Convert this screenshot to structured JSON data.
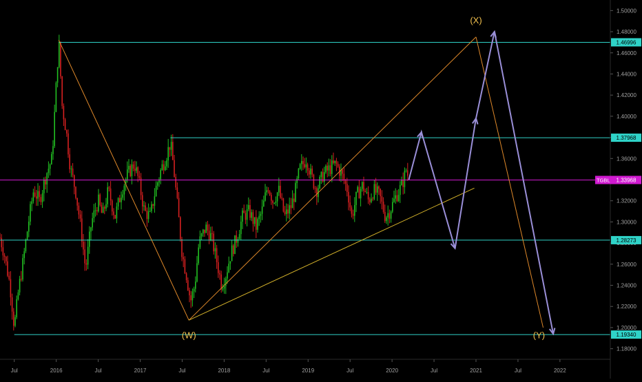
{
  "chart_data": {
    "type": "line",
    "chart_kind": "candlestick price chart with Elliott-wave annotation",
    "y_axis": {
      "position": "right",
      "ylim": [
        1.17,
        1.51
      ],
      "ticks": [
        "1.18000",
        "1.20000",
        "1.22000",
        "1.24000",
        "1.26000",
        "1.28000",
        "1.30000",
        "1.32000",
        "1.34000",
        "1.36000",
        "1.38000",
        "1.40000",
        "1.42000",
        "1.44000",
        "1.46000",
        "1.48000",
        "1.50000"
      ],
      "tick_values": [
        1.18,
        1.2,
        1.22,
        1.24,
        1.26,
        1.28,
        1.3,
        1.32,
        1.34,
        1.36,
        1.38,
        1.4,
        1.42,
        1.44,
        1.46,
        1.48,
        1.5
      ]
    },
    "x_axis": {
      "range": [
        2015.33,
        2022.6
      ],
      "tick_labels": [
        {
          "t": 2015.5,
          "label": "Jul"
        },
        {
          "t": 2016.0,
          "label": "2016"
        },
        {
          "t": 2016.5,
          "label": "Jul"
        },
        {
          "t": 2017.0,
          "label": "2017"
        },
        {
          "t": 2017.5,
          "label": "Jul"
        },
        {
          "t": 2018.0,
          "label": "2018"
        },
        {
          "t": 2018.5,
          "label": "Jul"
        },
        {
          "t": 2019.0,
          "label": "2019"
        },
        {
          "t": 2019.5,
          "label": "Jul"
        },
        {
          "t": 2020.0,
          "label": "2020"
        },
        {
          "t": 2020.5,
          "label": "Jul"
        },
        {
          "t": 2021.0,
          "label": "2021"
        },
        {
          "t": 2021.5,
          "label": "Jul"
        },
        {
          "t": 2022.0,
          "label": "2022"
        }
      ]
    },
    "price_path": [
      [
        2015.33,
        1.285
      ],
      [
        2015.38,
        1.27
      ],
      [
        2015.45,
        1.24
      ],
      [
        2015.5,
        1.2
      ],
      [
        2015.55,
        1.235
      ],
      [
        2015.6,
        1.26
      ],
      [
        2015.67,
        1.3
      ],
      [
        2015.73,
        1.33
      ],
      [
        2015.8,
        1.32
      ],
      [
        2015.88,
        1.345
      ],
      [
        2015.95,
        1.36
      ],
      [
        2016.03,
        1.472
      ],
      [
        2016.07,
        1.41
      ],
      [
        2016.12,
        1.385
      ],
      [
        2016.17,
        1.35
      ],
      [
        2016.23,
        1.33
      ],
      [
        2016.3,
        1.29
      ],
      [
        2016.35,
        1.255
      ],
      [
        2016.42,
        1.3
      ],
      [
        2016.5,
        1.32
      ],
      [
        2016.55,
        1.305
      ],
      [
        2016.62,
        1.33
      ],
      [
        2016.7,
        1.305
      ],
      [
        2016.78,
        1.33
      ],
      [
        2016.85,
        1.345
      ],
      [
        2016.93,
        1.355
      ],
      [
        2016.98,
        1.34
      ],
      [
        2017.05,
        1.31
      ],
      [
        2017.12,
        1.305
      ],
      [
        2017.18,
        1.33
      ],
      [
        2017.25,
        1.35
      ],
      [
        2017.3,
        1.36
      ],
      [
        2017.36,
        1.375
      ],
      [
        2017.4,
        1.35
      ],
      [
        2017.45,
        1.31
      ],
      [
        2017.5,
        1.27
      ],
      [
        2017.55,
        1.25
      ],
      [
        2017.6,
        1.225
      ],
      [
        2017.65,
        1.24
      ],
      [
        2017.7,
        1.28
      ],
      [
        2017.78,
        1.295
      ],
      [
        2017.85,
        1.285
      ],
      [
        2017.92,
        1.26
      ],
      [
        2017.97,
        1.24
      ],
      [
        2018.02,
        1.25
      ],
      [
        2018.08,
        1.27
      ],
      [
        2018.15,
        1.285
      ],
      [
        2018.22,
        1.305
      ],
      [
        2018.3,
        1.31
      ],
      [
        2018.38,
        1.295
      ],
      [
        2018.45,
        1.31
      ],
      [
        2018.52,
        1.335
      ],
      [
        2018.58,
        1.32
      ],
      [
        2018.65,
        1.33
      ],
      [
        2018.72,
        1.305
      ],
      [
        2018.8,
        1.315
      ],
      [
        2018.85,
        1.33
      ],
      [
        2018.9,
        1.35
      ],
      [
        2018.98,
        1.36
      ],
      [
        2019.03,
        1.345
      ],
      [
        2019.1,
        1.33
      ],
      [
        2019.18,
        1.345
      ],
      [
        2019.25,
        1.35
      ],
      [
        2019.33,
        1.355
      ],
      [
        2019.4,
        1.345
      ],
      [
        2019.47,
        1.33
      ],
      [
        2019.52,
        1.305
      ],
      [
        2019.58,
        1.325
      ],
      [
        2019.65,
        1.335
      ],
      [
        2019.72,
        1.32
      ],
      [
        2019.78,
        1.33
      ],
      [
        2019.85,
        1.325
      ],
      [
        2019.92,
        1.305
      ],
      [
        2019.97,
        1.31
      ],
      [
        2020.05,
        1.325
      ],
      [
        2020.12,
        1.335
      ],
      [
        2020.17,
        1.35
      ],
      [
        2020.2,
        1.34
      ]
    ],
    "levels": [
      {
        "value": 1.46996,
        "label": "1.46996",
        "color": "#2fd3c8"
      },
      {
        "value": 1.37968,
        "label": "1.37968",
        "color": "#2fd3c8"
      },
      {
        "value": 1.28273,
        "label": "1.28273",
        "color": "#2fd3c8"
      },
      {
        "value": 1.1934,
        "label": "1.19340",
        "color": "#2fd3c8"
      }
    ],
    "current_price": {
      "value": 1.33968,
      "label": "1.33968",
      "ticker": "TGBL",
      "color": "#d01ad0"
    },
    "wave_lines": [
      {
        "color": "#e0892a",
        "points": [
          [
            2016.03,
            1.472
          ],
          [
            2017.58,
            1.207
          ]
        ]
      },
      {
        "color": "#e0892a",
        "points": [
          [
            2017.58,
            1.207
          ],
          [
            2021.0,
            1.475
          ]
        ]
      },
      {
        "color": "#e0892a",
        "points": [
          [
            2021.0,
            1.475
          ],
          [
            2021.8,
            1.2
          ]
        ]
      },
      {
        "color": "#d4b22a",
        "points": [
          [
            2017.58,
            1.207
          ],
          [
            2020.98,
            1.332
          ]
        ]
      }
    ],
    "projection_path": {
      "color": "#9a8fd8",
      "points": [
        [
          2020.2,
          1.34
        ],
        [
          2020.35,
          1.385
        ],
        [
          2020.75,
          1.275
        ],
        [
          2021.0,
          1.398
        ],
        [
          2021.22,
          1.48
        ],
        [
          2021.92,
          1.194
        ]
      ]
    },
    "wave_labels": [
      {
        "text": "(W)",
        "t": 2017.58,
        "v": 1.19,
        "color": "#f2c14e"
      },
      {
        "text": "(X)",
        "t": 2021.0,
        "v": 1.488,
        "color": "#f2c14e"
      },
      {
        "text": "(Y)",
        "t": 2021.75,
        "v": 1.19,
        "color": "#f2c14e"
      }
    ],
    "colors": {
      "up": "#22c022",
      "down": "#d62020",
      "background": "#000000",
      "axis_text": "#a0a0a0"
    }
  }
}
